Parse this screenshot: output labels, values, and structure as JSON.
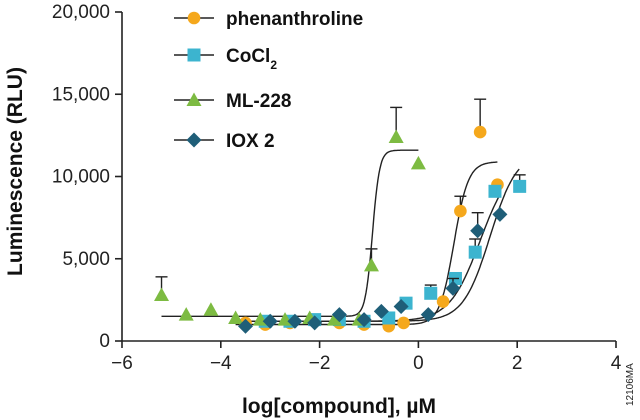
{
  "chart_data": {
    "type": "scatter",
    "title": "",
    "xlabel": "log[compound], µM",
    "ylabel": "Luminescence (RLU)",
    "xlim": [
      -6,
      4
    ],
    "ylim": [
      0,
      20000
    ],
    "xticks": [
      -6,
      -4,
      -2,
      0,
      2,
      4
    ],
    "xtick_labels": [
      "−6",
      "−4",
      "−2",
      "0",
      "2",
      "4"
    ],
    "yticks": [
      0,
      5000,
      10000,
      15000,
      20000
    ],
    "ytick_labels": [
      "0",
      "5,000",
      "10,000",
      "15,000",
      "20,000"
    ],
    "grid": false,
    "legend_position": "top-center",
    "series": [
      {
        "name": "phenanthroline",
        "name_parts": [
          "phenanthroline"
        ],
        "marker": "circle",
        "color": "#f5a81c",
        "x": [
          -3.5,
          -3.1,
          -2.6,
          -2.1,
          -1.6,
          -1.1,
          -0.6,
          -0.3,
          0.5,
          0.85,
          1.25,
          1.6
        ],
        "y": [
          1100,
          1000,
          1100,
          1200,
          1100,
          1000,
          900,
          1100,
          2400,
          7900,
          12700,
          9500
        ],
        "err_up": [
          0,
          0,
          0,
          0,
          0,
          0,
          0,
          0,
          0,
          900,
          2000,
          0
        ],
        "fit": {
          "bottom": 1000,
          "top": 10900,
          "logEC50": 0.72,
          "hill": 3.0,
          "x_start": -3.7,
          "x_end": 1.6
        }
      },
      {
        "name": "CoCl2",
        "name_parts": [
          "CoCl",
          "2"
        ],
        "marker": "square",
        "color": "#3cb4cf",
        "x": [
          -3.1,
          -2.6,
          -2.1,
          -1.6,
          -1.1,
          -0.6,
          -0.25,
          0.25,
          0.75,
          1.15,
          1.55,
          2.05
        ],
        "y": [
          1200,
          1200,
          1300,
          1300,
          1200,
          1400,
          2300,
          2900,
          3800,
          5400,
          9100,
          9400
        ],
        "err_up": [
          0,
          0,
          0,
          0,
          0,
          0,
          0,
          500,
          0,
          800,
          0,
          700
        ],
        "fit": {
          "bottom": 1200,
          "top": 11500,
          "logEC50": 1.45,
          "hill": 1.6,
          "x_start": -3.7,
          "x_end": 2.05
        }
      },
      {
        "name": "ML-228",
        "name_parts": [
          "ML-228"
        ],
        "marker": "triangle",
        "color": "#7dbb42",
        "x": [
          -5.2,
          -4.7,
          -4.2,
          -3.7,
          -3.2,
          -2.7,
          -2.2,
          -1.7,
          -1.2,
          -0.95,
          -0.45,
          0.0
        ],
        "y": [
          2800,
          1600,
          1900,
          1400,
          1300,
          1300,
          1400,
          1300,
          1300,
          4600,
          12400,
          10800
        ],
        "err_up": [
          1100,
          0,
          0,
          0,
          0,
          0,
          0,
          0,
          0,
          1000,
          1800,
          0
        ],
        "fit": {
          "bottom": 1500,
          "top": 11600,
          "logEC50": -0.93,
          "hill": 6.0,
          "x_start": -5.2,
          "x_end": 0.0
        }
      },
      {
        "name": "IOX 2",
        "name_parts": [
          "IOX 2"
        ],
        "marker": "diamond",
        "color": "#1f5e78",
        "x": [
          -3.5,
          -3.0,
          -2.5,
          -2.1,
          -1.6,
          -1.1,
          -0.75,
          -0.35,
          0.2,
          0.7,
          1.2,
          1.65
        ],
        "y": [
          900,
          1200,
          1200,
          1100,
          1600,
          1300,
          1800,
          2100,
          1600,
          3200,
          6700,
          7700
        ],
        "err_up": [
          0,
          0,
          0,
          0,
          0,
          0,
          0,
          0,
          0,
          600,
          1100,
          0
        ],
        "fit": {
          "bottom": 1200,
          "top": 11000,
          "logEC50": 1.25,
          "hill": 1.4,
          "x_start": -3.7,
          "x_end": 1.65
        }
      }
    ]
  },
  "side_code": "12106MA"
}
